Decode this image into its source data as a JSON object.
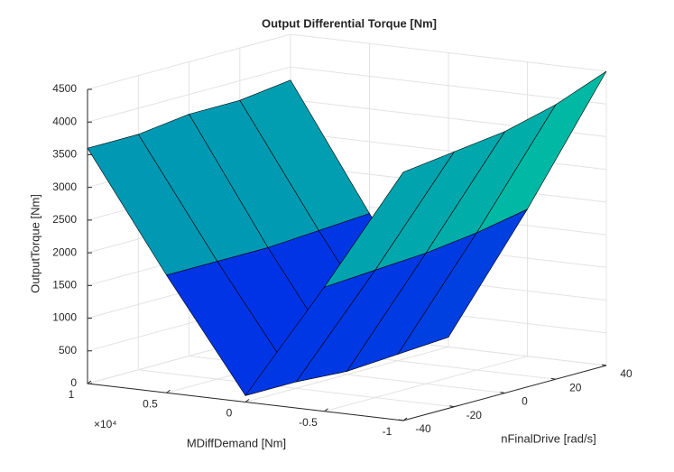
{
  "chart_data": {
    "type": "surface",
    "title": "Output Differential Torque [Nm]",
    "xlabel": "MDiffDemand [Nm]",
    "ylabel": "nFinalDrive [rad/s]",
    "zlabel": "OutputTorque [Nm]",
    "x": [
      -10000,
      -5000,
      0,
      5000,
      10000
    ],
    "y": [
      -40,
      -20,
      0,
      20,
      40
    ],
    "z": [
      [
        3800,
        1900,
        100,
        1800,
        3600
      ],
      [
        3900,
        1950,
        100,
        1800,
        3600
      ],
      [
        4000,
        2000,
        50,
        1800,
        3700
      ],
      [
        4200,
        2100,
        100,
        1850,
        3700
      ],
      [
        4500,
        2250,
        150,
        1900,
        3800
      ]
    ],
    "xlim": [
      -10000,
      10000
    ],
    "ylim": [
      -40,
      40
    ],
    "zlim": [
      0,
      4500
    ],
    "xticks": [
      {
        "value": -10000,
        "label": "-1"
      },
      {
        "value": -5000,
        "label": "-0.5"
      },
      0,
      {
        "value": 5000,
        "label": "0.5"
      },
      {
        "value": 10000,
        "label": "1"
      }
    ],
    "x_exponent_label": "×10⁴",
    "yticks": [
      -40,
      -20,
      0,
      20,
      40
    ],
    "zticks": [
      0,
      500,
      1000,
      1500,
      2000,
      2500,
      3000,
      3500,
      4000,
      4500
    ],
    "colormap": [
      "#0000ff",
      "#00ff80"
    ],
    "grid": true
  }
}
